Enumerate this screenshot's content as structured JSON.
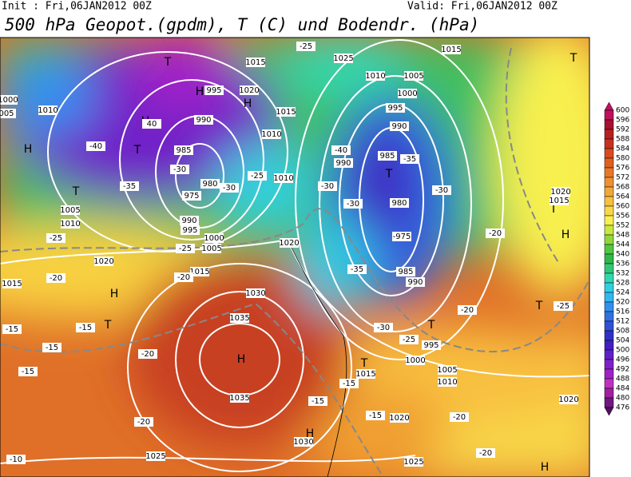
{
  "header": {
    "init": "Init : Fri,06JAN2012 00Z",
    "valid": "Valid: Fri,06JAN2012 00Z",
    "title": "500 hPa Geopot.(gpdm), T (C) und Bodendr. (hPa)"
  },
  "colorbar": {
    "labels": [
      600,
      596,
      592,
      588,
      584,
      580,
      576,
      572,
      568,
      564,
      560,
      556,
      552,
      548,
      544,
      540,
      536,
      532,
      528,
      524,
      520,
      516,
      512,
      508,
      504,
      500,
      496,
      492,
      488,
      484,
      480,
      476
    ],
    "colors": [
      "#c01060",
      "#a81030",
      "#b82020",
      "#c83020",
      "#d84a20",
      "#e06020",
      "#e87828",
      "#f09030",
      "#f0a838",
      "#f8c040",
      "#f8d848",
      "#f8f050",
      "#c8e840",
      "#90d838",
      "#50c840",
      "#30b848",
      "#30c878",
      "#30d8b0",
      "#30d0e0",
      "#30b8f0",
      "#3090f0",
      "#3070e0",
      "#3050d8",
      "#3030c8",
      "#4020c0",
      "#6020c8",
      "#8020c8",
      "#a020c8",
      "#c030c0",
      "#a020a0",
      "#701880",
      "#501060"
    ]
  },
  "map": {
    "labels": [
      "T",
      "H",
      "H",
      "1020",
      "995",
      "990",
      "H",
      "40",
      "H",
      "T",
      "-40",
      "985",
      "-30",
      "980",
      "975",
      "T",
      "-35",
      "1005",
      "1010",
      "-25",
      "1020",
      "1015",
      "-20",
      "H",
      "T",
      "-15",
      "-15",
      "-15",
      "-20",
      "-15",
      "H",
      "1035",
      "1035",
      "1030",
      "-15",
      "H",
      "1030",
      "-20",
      "1025",
      "-10",
      "1015",
      "-20",
      "1020",
      "1010",
      "1015",
      "1015",
      "1025",
      "1015",
      "1010",
      "1005",
      "1000",
      "995",
      "990",
      "985",
      "T",
      "-40",
      "990",
      "-35",
      "980",
      "-975",
      "985",
      "990",
      "-30",
      "-20",
      "-20",
      "T",
      "995",
      "1000",
      "1005",
      "1010",
      "-30",
      "-25",
      "1015",
      "T",
      "-15",
      "1020",
      "-15",
      "1025",
      "T",
      "T",
      "H",
      "1020",
      "1015",
      "T",
      "-25",
      "-20",
      "-20",
      "1020",
      "H",
      "-25",
      "-30",
      "-25",
      "1000",
      "1005",
      "-25",
      "995",
      "990",
      "1010",
      "-30",
      "-30",
      "-35",
      "1000",
      "005",
      "1010"
    ]
  }
}
